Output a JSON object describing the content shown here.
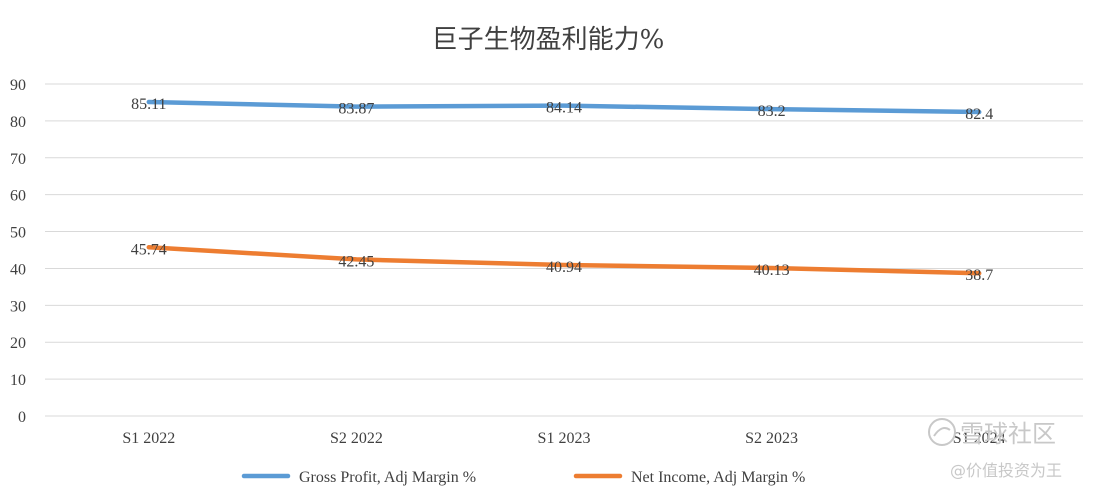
{
  "chart_data": {
    "type": "line",
    "title": "巨子生物盈利能力%",
    "categories": [
      "S1 2022",
      "S2 2022",
      "S1 2023",
      "S2 2023",
      "S1 2024"
    ],
    "ylim": [
      0,
      90
    ],
    "yticks": [
      0,
      10,
      20,
      30,
      40,
      50,
      60,
      70,
      80,
      90
    ],
    "grid": true,
    "legend_position": "bottom",
    "series": [
      {
        "name": "Gross Profit, Adj Margin %",
        "color": "#5b9bd5",
        "values": [
          85.11,
          83.87,
          84.14,
          83.2,
          82.4
        ],
        "labels": [
          "85.11",
          "83.87",
          "84.14",
          "83.2",
          "82.4"
        ]
      },
      {
        "name": "Net Income, Adj Margin %",
        "color": "#ed7d31",
        "values": [
          45.74,
          42.45,
          40.94,
          40.13,
          38.7
        ],
        "labels": [
          "45.74",
          "42.45",
          "40.94",
          "40.13",
          "38.7"
        ]
      }
    ]
  },
  "watermark": {
    "line1": "雪球社区",
    "line2": "@价值投资为王",
    "icon": "snowball-logo-icon"
  }
}
